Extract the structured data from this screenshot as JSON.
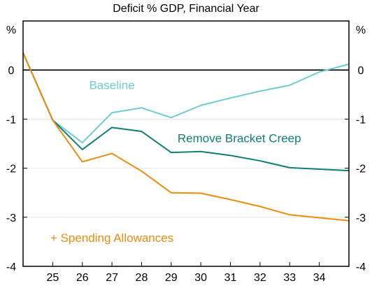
{
  "chart_data": {
    "type": "line",
    "title": "Deficit % GDP, Financial Year",
    "ylabel_left": "%",
    "ylabel_right": "%",
    "xlabel": "",
    "x": [
      24,
      25,
      26,
      27,
      28,
      29,
      30,
      31,
      32,
      33,
      34,
      35
    ],
    "x_tick_labels": [
      "25",
      "26",
      "27",
      "28",
      "29",
      "30",
      "31",
      "32",
      "33",
      "34"
    ],
    "x_tick_values": [
      25,
      26,
      27,
      28,
      29,
      30,
      31,
      32,
      33,
      34
    ],
    "xlim": [
      24,
      35
    ],
    "ylim": [
      -4,
      1
    ],
    "y_ticks": [
      0,
      -1,
      -2,
      -3,
      -4
    ],
    "y_tick_labels": [
      "0",
      "-1",
      "-2",
      "-3",
      "-4"
    ],
    "grid": "horizontal",
    "zero_line": true,
    "series": [
      {
        "name": "Baseline",
        "color": "#6ccdd3",
        "values": [
          0.35,
          -1.02,
          -1.48,
          -0.87,
          -0.77,
          -0.97,
          -0.72,
          -0.57,
          -0.43,
          -0.31,
          -0.04,
          0.12
        ]
      },
      {
        "name": "Remove Bracket Creep",
        "color": "#0e7f73",
        "values": [
          0.35,
          -1.02,
          -1.62,
          -1.17,
          -1.25,
          -1.68,
          -1.66,
          -1.74,
          -1.85,
          -1.99,
          -2.02,
          -2.05
        ]
      },
      {
        "name": "+ Spending Allowances",
        "color": "#ef8b0c",
        "values": [
          0.35,
          -1.02,
          -1.87,
          -1.7,
          -2.06,
          -2.5,
          -2.51,
          -2.64,
          -2.78,
          -2.95,
          -3.01,
          -3.07
        ]
      }
    ]
  }
}
